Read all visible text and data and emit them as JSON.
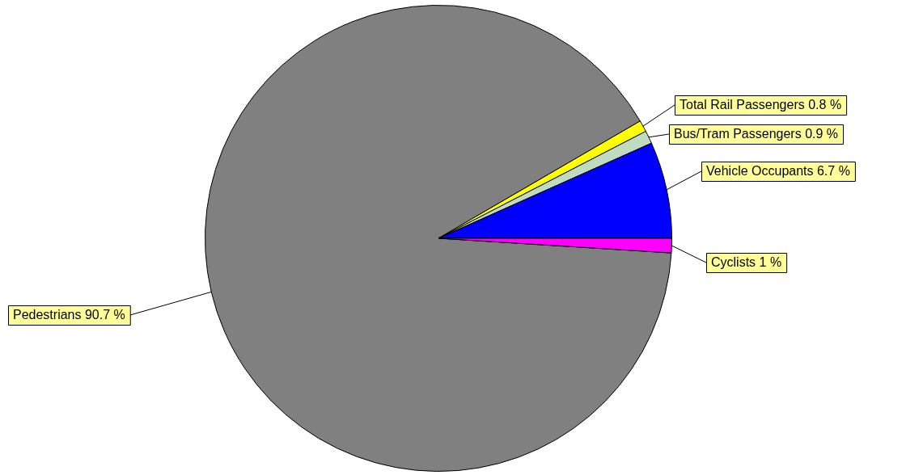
{
  "chart_data": {
    "type": "pie",
    "categories": [
      "Pedestrians",
      "Total Rail Passengers",
      "Bus/Tram Passengers",
      "Vehicle Occupants",
      "Cyclists"
    ],
    "values": [
      90.7,
      0.8,
      0.9,
      6.7,
      1
    ],
    "colors": [
      "#808080",
      "#ffff00",
      "#c0dcc0",
      "#0000ff",
      "#ff00ff"
    ],
    "value_labels": [
      "90.7 %",
      "0.8 %",
      "0.9 %",
      "6.7 %",
      "1 %"
    ],
    "legend": false
  }
}
